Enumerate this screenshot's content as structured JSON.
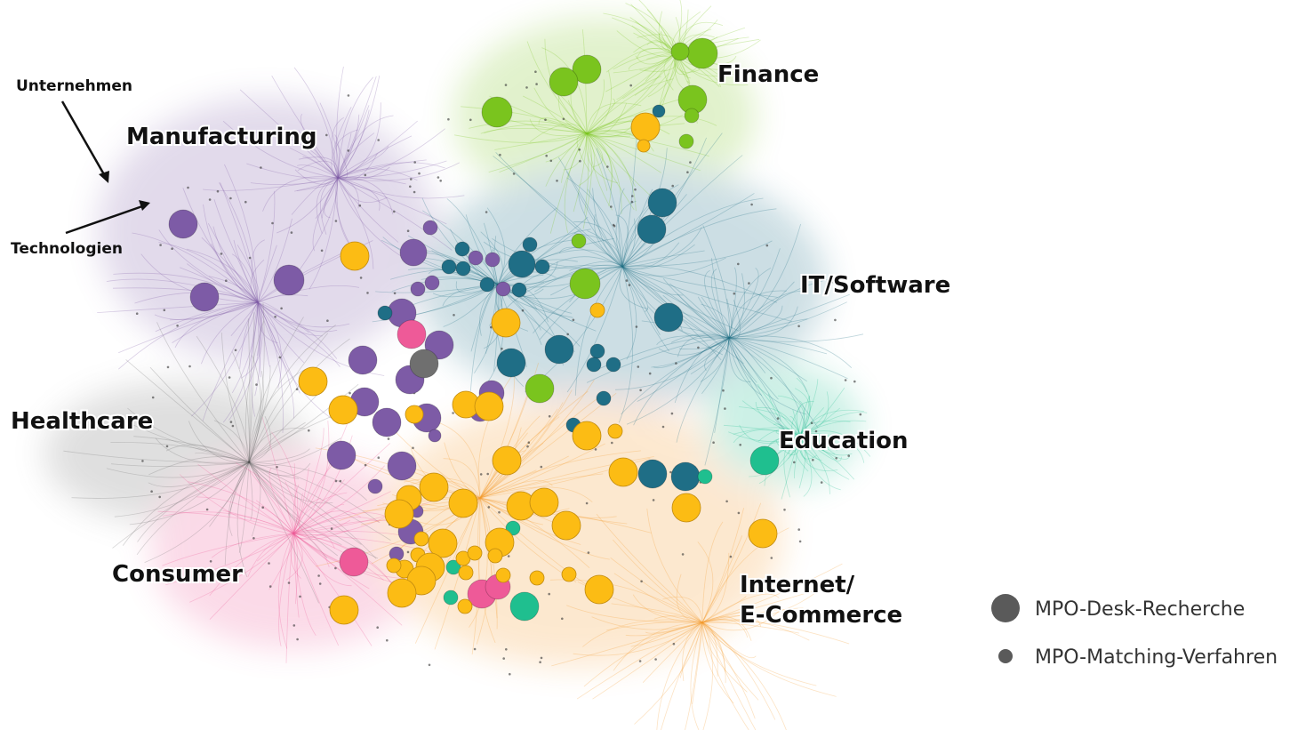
{
  "clusters": [
    {
      "id": "finance",
      "label": "Finance",
      "color": "#7ac41e"
    },
    {
      "id": "manufacturing",
      "label": "Manufacturing",
      "color": "#7d5ba6"
    },
    {
      "id": "it_software",
      "label": "IT/Software",
      "color": "#1f6e86"
    },
    {
      "id": "healthcare",
      "label": "Healthcare",
      "color": "#6f6f6f"
    },
    {
      "id": "education",
      "label": "Education",
      "color": "#1fbf8f"
    },
    {
      "id": "consumer",
      "label": "Consumer",
      "color": "#ee5a98"
    },
    {
      "id": "internet_ecommerce",
      "label": "Internet/\nE-Commerce",
      "color": "#f59a2b"
    }
  ],
  "annotations": {
    "companies": "Unternehmen",
    "technologies": "Technologien"
  },
  "legend": [
    {
      "label": "MPO-Desk-Recherche",
      "marker_color": "#5a5a5a"
    },
    {
      "label": "MPO-Matching-Verfahren",
      "marker_color": "#5a5a5a"
    }
  ],
  "colors": {
    "yellow_node": "#fcbc14",
    "node_stroke": "#c08a10"
  }
}
